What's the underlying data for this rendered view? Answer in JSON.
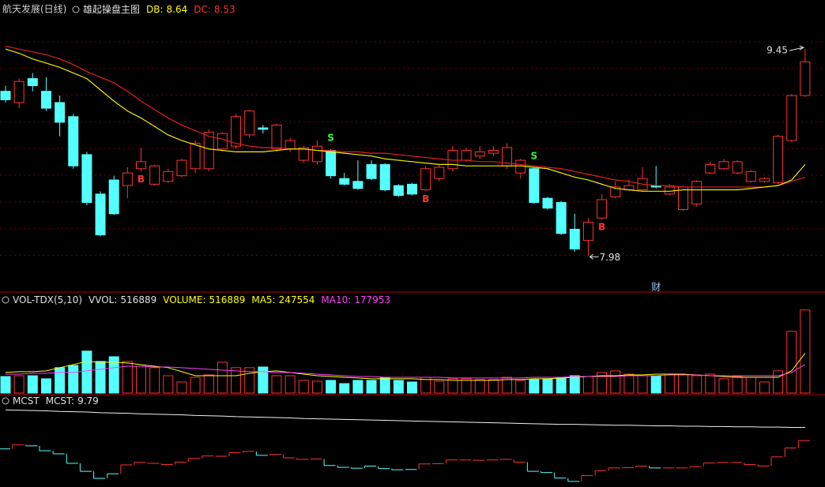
{
  "chart_data": [
    {
      "type": "candlestick",
      "title": "航天发展(日线)",
      "indicator": "雄起操盘主图",
      "stats": [
        {
          "name": "DB:",
          "value": 8.64,
          "color": "#ffff00"
        },
        {
          "name": "DC:",
          "value": 8.53,
          "color": "#ff3232"
        }
      ],
      "up_color": "#ff3232",
      "down_color": "#54ffff",
      "ylim": [
        7.78,
        9.72
      ],
      "open": [
        9.15,
        9.07,
        9.24,
        9.15,
        9.07,
        8.97,
        8.7,
        8.42,
        8.52,
        8.48,
        8.6,
        8.49,
        8.51,
        8.55,
        8.6,
        8.6,
        8.74,
        8.76,
        8.84,
        8.89,
        8.74,
        8.74,
        8.66,
        8.65,
        8.73,
        8.53,
        8.51,
        8.63,
        8.63,
        8.48,
        8.49,
        8.45,
        8.53,
        8.6,
        8.66,
        8.69,
        8.71,
        8.62,
        8.57,
        8.6,
        8.39,
        8.36,
        8.17,
        8.09,
        8.25,
        8.4,
        8.45,
        8.45,
        8.48,
        8.42,
        8.31,
        8.35,
        8.57,
        8.6,
        8.57,
        8.51,
        8.51,
        8.5,
        8.8,
        9.12
      ],
      "high": [
        9.19,
        9.24,
        9.28,
        9.25,
        9.12,
        8.99,
        8.72,
        8.44,
        8.55,
        8.61,
        8.75,
        8.63,
        8.6,
        8.67,
        8.8,
        8.88,
        8.86,
        8.99,
        9.02,
        8.91,
        8.92,
        8.82,
        8.76,
        8.8,
        8.74,
        8.57,
        8.66,
        8.66,
        8.64,
        8.49,
        8.5,
        8.62,
        8.63,
        8.76,
        8.75,
        8.76,
        8.76,
        8.78,
        8.67,
        8.61,
        8.4,
        8.37,
        8.28,
        8.25,
        8.42,
        8.51,
        8.52,
        8.61,
        8.62,
        8.49,
        8.48,
        8.52,
        8.65,
        8.67,
        8.66,
        8.59,
        8.54,
        8.84,
        9.13,
        9.45
      ],
      "low": [
        9.07,
        9.03,
        9.15,
        9.01,
        8.83,
        8.6,
        8.34,
        8.12,
        8.27,
        8.39,
        8.58,
        8.48,
        8.5,
        8.54,
        8.57,
        8.58,
        8.72,
        8.74,
        8.82,
        8.85,
        8.72,
        8.72,
        8.64,
        8.63,
        8.53,
        8.48,
        8.45,
        8.52,
        8.44,
        8.4,
        8.41,
        8.44,
        8.51,
        8.58,
        8.65,
        8.67,
        8.69,
        8.6,
        8.53,
        8.35,
        8.31,
        8.13,
        8.01,
        7.98,
        8.24,
        8.39,
        8.44,
        8.44,
        8.46,
        8.41,
        8.3,
        8.33,
        8.56,
        8.59,
        8.56,
        8.5,
        8.5,
        8.49,
        8.79,
        9.11
      ],
      "close": [
        9.09,
        9.22,
        9.19,
        9.03,
        8.93,
        8.62,
        8.36,
        8.13,
        8.28,
        8.57,
        8.65,
        8.62,
        8.58,
        8.66,
        8.78,
        8.86,
        8.85,
        8.97,
        9.01,
        8.88,
        8.91,
        8.8,
        8.75,
        8.76,
        8.55,
        8.49,
        8.46,
        8.53,
        8.45,
        8.41,
        8.42,
        8.6,
        8.61,
        8.73,
        8.73,
        8.72,
        8.73,
        8.75,
        8.66,
        8.36,
        8.32,
        8.14,
        8.03,
        8.22,
        8.38,
        8.47,
        8.48,
        8.53,
        8.47,
        8.47,
        8.47,
        8.51,
        8.63,
        8.65,
        8.65,
        8.58,
        8.53,
        8.83,
        9.12,
        9.36
      ],
      "series": [
        {
          "color": "#e02020",
          "values": [
            9.47,
            9.45,
            9.43,
            9.41,
            9.38,
            9.34,
            9.29,
            9.25,
            9.21,
            9.15,
            9.08,
            9.02,
            8.96,
            8.91,
            8.87,
            8.83,
            8.81,
            8.78,
            8.76,
            8.75,
            8.75,
            8.74,
            8.74,
            8.73,
            8.73,
            8.72,
            8.72,
            8.71,
            8.71,
            8.7,
            8.69,
            8.68,
            8.67,
            8.66,
            8.66,
            8.65,
            8.65,
            8.64,
            8.63,
            8.62,
            8.61,
            8.6,
            8.58,
            8.56,
            8.54,
            8.52,
            8.51,
            8.49,
            8.48,
            8.48,
            8.47,
            8.47,
            8.47,
            8.47,
            8.47,
            8.47,
            8.47,
            8.48,
            8.51,
            8.54
          ]
        },
        {
          "color": "#f0f000",
          "values": [
            9.45,
            9.42,
            9.38,
            9.35,
            9.32,
            9.28,
            9.24,
            9.16,
            9.08,
            9.01,
            8.96,
            8.9,
            8.84,
            8.8,
            8.77,
            8.74,
            8.73,
            8.72,
            8.72,
            8.72,
            8.73,
            8.74,
            8.74,
            8.73,
            8.72,
            8.71,
            8.7,
            8.69,
            8.67,
            8.66,
            8.65,
            8.64,
            8.63,
            8.63,
            8.62,
            8.62,
            8.62,
            8.62,
            8.62,
            8.61,
            8.6,
            8.57,
            8.54,
            8.52,
            8.49,
            8.46,
            8.45,
            8.44,
            8.44,
            8.44,
            8.45,
            8.45,
            8.45,
            8.45,
            8.45,
            8.46,
            8.47,
            8.48,
            8.52,
            8.63
          ]
        }
      ],
      "annotations": [
        {
          "text": "B",
          "index": 10,
          "color": "#ff3232"
        },
        {
          "text": "S",
          "index": 24,
          "color": "#32ff32"
        },
        {
          "text": "B",
          "index": 31,
          "color": "#ff3232"
        },
        {
          "text": "S",
          "index": 39,
          "color": "#32ff32"
        },
        {
          "text": "B",
          "index": 44,
          "color": "#ff3232"
        }
      ],
      "high_label": {
        "value": 9.45,
        "index": 59
      },
      "low_label": {
        "value": 7.98,
        "index": 43
      },
      "event": {
        "text": "财",
        "index": 48
      }
    },
    {
      "type": "bar",
      "title": "VOL-TDX(5,10)",
      "stats": [
        {
          "name": "VVOL:",
          "value": 516889,
          "color": "#e0e0e0"
        },
        {
          "name": "VOLUME:",
          "value": 516889,
          "color": "#ffff00"
        },
        {
          "name": "MA5:",
          "value": 247554,
          "color": "#ffff00"
        },
        {
          "name": "MA10:",
          "value": 177953,
          "color": "#ff40ff"
        }
      ],
      "ylim": [
        0,
        540000
      ],
      "values": [
        103000,
        108000,
        108000,
        89000,
        158000,
        172000,
        261000,
        197000,
        226000,
        197000,
        167000,
        158000,
        108000,
        69000,
        98000,
        113000,
        192000,
        158000,
        158000,
        162000,
        108000,
        108000,
        79000,
        74000,
        79000,
        59000,
        79000,
        79000,
        98000,
        79000,
        69000,
        98000,
        74000,
        89000,
        89000,
        84000,
        84000,
        98000,
        79000,
        84000,
        89000,
        98000,
        108000,
        103000,
        128000,
        138000,
        118000,
        108000,
        108000,
        118000,
        113000,
        108000,
        118000,
        89000,
        103000,
        98000,
        69000,
        138000,
        384000,
        516889
      ],
      "series": [
        {
          "color": "#ffff00",
          "values": [
            128000,
            133000,
            133000,
            138000,
            158000,
            177000,
            197000,
            192000,
            192000,
            187000,
            177000,
            167000,
            158000,
            133000,
            108000,
            108000,
            108000,
            108000,
            123000,
            133000,
            138000,
            128000,
            118000,
            108000,
            103000,
            98000,
            94000,
            89000,
            89000,
            89000,
            89000,
            84000,
            84000,
            79000,
            79000,
            79000,
            79000,
            84000,
            84000,
            89000,
            89000,
            94000,
            98000,
            103000,
            108000,
            108000,
            113000,
            113000,
            118000,
            118000,
            118000,
            113000,
            108000,
            103000,
            98000,
            98000,
            98000,
            98000,
            138000,
            247554
          ]
        },
        {
          "color": "#ff40ff",
          "values": [
            118000,
            118000,
            123000,
            123000,
            128000,
            128000,
            138000,
            148000,
            158000,
            167000,
            167000,
            162000,
            162000,
            158000,
            153000,
            148000,
            143000,
            138000,
            133000,
            133000,
            128000,
            128000,
            123000,
            118000,
            113000,
            108000,
            103000,
            103000,
            98000,
            98000,
            98000,
            98000,
            98000,
            94000,
            94000,
            94000,
            94000,
            94000,
            94000,
            98000,
            98000,
            98000,
            103000,
            103000,
            103000,
            103000,
            108000,
            108000,
            108000,
            113000,
            113000,
            113000,
            108000,
            108000,
            108000,
            108000,
            108000,
            108000,
            128000,
            177953
          ]
        }
      ]
    },
    {
      "type": "line",
      "title": "MCST",
      "stats": [
        {
          "name": "MCST:",
          "value": 9.79,
          "color": "#e0e0e0"
        }
      ],
      "ylim": [
        7.9,
        10.6
      ],
      "color": "#f0f0f0",
      "values": [
        10.36,
        10.35,
        10.34,
        10.33,
        10.31,
        10.3,
        10.29,
        10.27,
        10.26,
        10.25,
        10.23,
        10.22,
        10.21,
        10.2,
        10.18,
        10.17,
        10.16,
        10.14,
        10.13,
        10.12,
        10.11,
        10.1,
        10.08,
        10.07,
        10.06,
        10.05,
        10.04,
        10.03,
        10.02,
        10.01,
        10.0,
        9.99,
        9.98,
        9.97,
        9.96,
        9.95,
        9.94,
        9.93,
        9.92,
        9.91,
        9.9,
        9.89,
        9.89,
        9.88,
        9.87,
        9.86,
        9.86,
        9.85,
        9.84,
        9.84,
        9.83,
        9.83,
        9.82,
        9.82,
        9.81,
        9.81,
        9.8,
        9.8,
        9.79,
        9.79
      ]
    }
  ]
}
